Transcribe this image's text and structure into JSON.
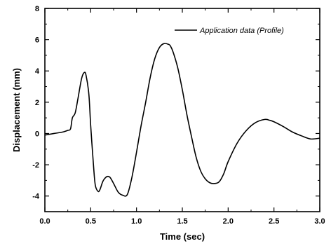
{
  "chart_data": {
    "type": "line",
    "title": "",
    "xlabel": "Time (sec)",
    "ylabel": "Displacement (mm)",
    "xlim": [
      0.0,
      3.0
    ],
    "ylim": [
      -5,
      8
    ],
    "xticks": [
      "0.0",
      "0.5",
      "1.0",
      "1.5",
      "2.0",
      "2.5",
      "3.0"
    ],
    "yticks": [
      "-4",
      "-2",
      "0",
      "2",
      "4",
      "6",
      "8"
    ],
    "grid": false,
    "legend_position": "top-right",
    "series": [
      {
        "name": "Application data (Profile)",
        "color": "#000000",
        "x": [
          0.0,
          0.1,
          0.2,
          0.25,
          0.28,
          0.3,
          0.33,
          0.36,
          0.4,
          0.43,
          0.45,
          0.48,
          0.5,
          0.53,
          0.55,
          0.58,
          0.6,
          0.63,
          0.65,
          0.68,
          0.71,
          0.75,
          0.8,
          0.85,
          0.9,
          0.95,
          1.0,
          1.05,
          1.1,
          1.15,
          1.2,
          1.25,
          1.3,
          1.35,
          1.37,
          1.4,
          1.45,
          1.5,
          1.55,
          1.6,
          1.65,
          1.7,
          1.75,
          1.8,
          1.85,
          1.9,
          1.95,
          2.0,
          2.1,
          2.2,
          2.3,
          2.4,
          2.45,
          2.5,
          2.6,
          2.7,
          2.8,
          2.9,
          3.0
        ],
        "y": [
          -0.1,
          0.0,
          0.1,
          0.2,
          0.3,
          1.0,
          1.3,
          2.2,
          3.5,
          3.9,
          3.7,
          2.5,
          0.5,
          -2.0,
          -3.3,
          -3.7,
          -3.6,
          -3.1,
          -2.9,
          -2.75,
          -2.8,
          -3.2,
          -3.75,
          -3.95,
          -3.9,
          -2.8,
          -1.2,
          0.5,
          2.0,
          3.6,
          4.8,
          5.5,
          5.75,
          5.7,
          5.6,
          5.2,
          4.2,
          2.8,
          1.2,
          -0.2,
          -1.5,
          -2.4,
          -2.9,
          -3.15,
          -3.2,
          -3.1,
          -2.6,
          -1.8,
          -0.6,
          0.2,
          0.7,
          0.9,
          0.85,
          0.75,
          0.45,
          0.1,
          -0.15,
          -0.35,
          -0.3
        ]
      }
    ]
  }
}
